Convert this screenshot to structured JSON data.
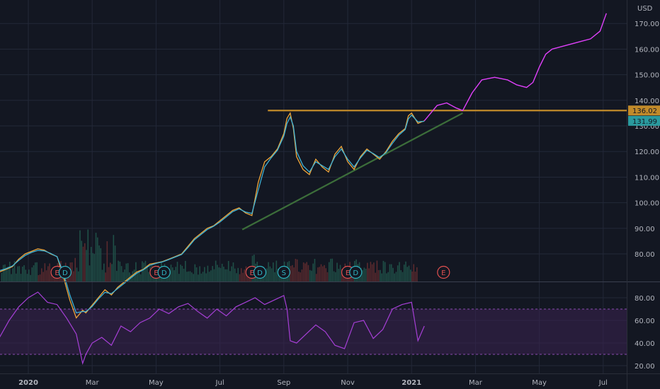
{
  "chart_data": [
    {
      "type": "line",
      "name": "price-pane",
      "currency_label": "USD",
      "ylim": [
        72,
        176
      ],
      "yticks": [
        80,
        90,
        100,
        110,
        120,
        130,
        140,
        150,
        160,
        170
      ],
      "ytick_labels": [
        "80.00",
        "90.00",
        "100.00",
        "110.00",
        "120.00",
        "130.00",
        "140.00",
        "150.00",
        "160.00",
        "170.00"
      ],
      "xticks": [
        {
          "label": "2020",
          "t": 0
        },
        {
          "label": "Mar",
          "t": 2
        },
        {
          "label": "May",
          "t": 4
        },
        {
          "label": "Jul",
          "t": 6
        },
        {
          "label": "Sep",
          "t": 8
        },
        {
          "label": "Nov",
          "t": 10
        },
        {
          "label": "2021",
          "t": 12
        },
        {
          "label": "Mar",
          "t": 14
        },
        {
          "label": "May",
          "t": 16
        },
        {
          "label": "Jul",
          "t": 18
        }
      ],
      "price_series": {
        "t": [
          -0.9,
          -0.7,
          -0.5,
          -0.3,
          -0.1,
          0.1,
          0.3,
          0.5,
          0.7,
          0.9,
          1.1,
          1.3,
          1.5,
          1.7,
          1.8,
          2.0,
          2.2,
          2.4,
          2.6,
          2.8,
          3.0,
          3.2,
          3.4,
          3.6,
          3.8,
          4.0,
          4.2,
          4.4,
          4.6,
          4.8,
          5.0,
          5.2,
          5.4,
          5.6,
          5.8,
          6.0,
          6.2,
          6.4,
          6.6,
          6.8,
          7.0,
          7.2,
          7.4,
          7.6,
          7.8,
          8.0,
          8.1,
          8.2,
          8.3,
          8.4,
          8.6,
          8.8,
          9.0,
          9.2,
          9.4,
          9.6,
          9.8,
          10.0,
          10.2,
          10.4,
          10.6,
          10.8,
          11.0,
          11.2,
          11.4,
          11.6,
          11.8,
          11.9,
          12.0,
          12.2,
          12.4
        ],
        "close": [
          73,
          74,
          75,
          78,
          80,
          81,
          82,
          81.5,
          80,
          79,
          71,
          62,
          55,
          58,
          57,
          60,
          63,
          66,
          64,
          67,
          69,
          71,
          73,
          74,
          76,
          76.5,
          77,
          78,
          79,
          80,
          83,
          86,
          88,
          90,
          91,
          93,
          95,
          97,
          98,
          96,
          95,
          108,
          116,
          118,
          121,
          127,
          133,
          135,
          129,
          118,
          113,
          111,
          117,
          114,
          112,
          119,
          122,
          116,
          113,
          118,
          121,
          119,
          117,
          120,
          124,
          127,
          129,
          134,
          135,
          131,
          132
        ],
        "ma": [
          73.5,
          74.2,
          75.3,
          77.5,
          79.4,
          80.6,
          81.4,
          81.2,
          80.2,
          78.9,
          72.5,
          64,
          57,
          57.5,
          57.5,
          59.5,
          62.5,
          65,
          64.5,
          66.5,
          68.5,
          70.5,
          72.5,
          73.8,
          75.5,
          76.3,
          76.9,
          77.8,
          78.8,
          79.8,
          82.5,
          85.5,
          87.5,
          89.5,
          90.8,
          92.5,
          94.5,
          96.5,
          97.6,
          96.4,
          95.8,
          105,
          114,
          117.5,
          120.5,
          126,
          131,
          133.5,
          130,
          120,
          114.5,
          112,
          116,
          114.5,
          113,
          118,
          121,
          117,
          114,
          117.5,
          120.5,
          119.2,
          117.6,
          119.6,
          123.2,
          126.4,
          128.6,
          132.8,
          134.2,
          131.6,
          131.8
        ]
      },
      "resistance_line": {
        "value": 136.02,
        "t_start": 7.5,
        "t_end": 21
      },
      "support_trendline": {
        "t_start": 6.7,
        "value_start": 89.5,
        "t_end": 13.6,
        "value_end": 135
      },
      "projection_path": {
        "t": [
          12.4,
          12.8,
          13.1,
          13.4,
          13.6,
          13.9,
          14.2,
          14.6,
          15.0,
          15.3,
          15.6,
          15.8,
          16.0,
          16.2,
          16.4,
          16.7,
          17.0,
          17.3,
          17.6,
          17.9,
          18.1
        ],
        "values": [
          132,
          138,
          139,
          137,
          136,
          143,
          148,
          149,
          148,
          146,
          145,
          147,
          153,
          158,
          160,
          161,
          162,
          163,
          164,
          167,
          174
        ]
      },
      "price_tags": [
        {
          "label": "136.02",
          "value": 136.02,
          "color": "#c18a2a"
        },
        {
          "label": "131.99",
          "value": 131.99,
          "color": "#2a9a9e"
        }
      ],
      "events": [
        {
          "label": "E",
          "t": 0.9,
          "kind": "earnings"
        },
        {
          "label": "D",
          "t": 1.15,
          "kind": "dividend"
        },
        {
          "label": "E",
          "t": 4.0,
          "kind": "earnings"
        },
        {
          "label": "D",
          "t": 4.25,
          "kind": "dividend"
        },
        {
          "label": "E",
          "t": 7.0,
          "kind": "earnings"
        },
        {
          "label": "D",
          "t": 7.25,
          "kind": "dividend"
        },
        {
          "label": "S",
          "t": 8.0,
          "kind": "split"
        },
        {
          "label": "E",
          "t": 10.0,
          "kind": "earnings"
        },
        {
          "label": "D",
          "t": 10.25,
          "kind": "dividend"
        },
        {
          "label": "E",
          "t": 13.0,
          "kind": "earnings"
        }
      ],
      "colors": {
        "background": "#131722",
        "grid": "#232838",
        "price": "#f0a63a",
        "ma": "#3fb2d6",
        "resistance": "#c18a2a",
        "support": "#3c6e3a",
        "projection": "#e040fb",
        "earnings": "#e05050",
        "dividend": "#2fb3c0",
        "volume_up": "#1f4f47",
        "volume_down": "#5a2a2e"
      }
    },
    {
      "type": "line",
      "name": "rsi-pane",
      "ylim": [
        15,
        92
      ],
      "yticks": [
        20,
        40,
        60,
        80
      ],
      "ytick_labels": [
        "20.00",
        "40.00",
        "60.00",
        "80.00"
      ],
      "band": [
        30,
        70
      ],
      "rsi_series": {
        "t": [
          -0.9,
          -0.6,
          -0.3,
          0.0,
          0.3,
          0.6,
          0.9,
          1.2,
          1.5,
          1.7,
          1.8,
          2.0,
          2.3,
          2.6,
          2.9,
          3.2,
          3.5,
          3.8,
          4.1,
          4.4,
          4.7,
          5.0,
          5.3,
          5.6,
          5.9,
          6.2,
          6.5,
          6.8,
          7.1,
          7.4,
          7.7,
          8.0,
          8.1,
          8.2,
          8.4,
          8.7,
          9.0,
          9.3,
          9.6,
          9.9,
          10.2,
          10.5,
          10.8,
          11.1,
          11.4,
          11.7,
          12.0,
          12.2,
          12.4
        ],
        "values": [
          45,
          60,
          72,
          80,
          85,
          76,
          74,
          62,
          48,
          22,
          30,
          40,
          45,
          38,
          55,
          50,
          58,
          62,
          70,
          66,
          72,
          75,
          68,
          62,
          70,
          64,
          72,
          76,
          80,
          74,
          78,
          82,
          70,
          42,
          40,
          48,
          56,
          50,
          38,
          35,
          58,
          60,
          44,
          52,
          70,
          74,
          76,
          42,
          55
        ]
      },
      "colors": {
        "rsi": "#a63fd6",
        "band": "#3a2350",
        "band_line": "#8a4bb0"
      }
    }
  ]
}
